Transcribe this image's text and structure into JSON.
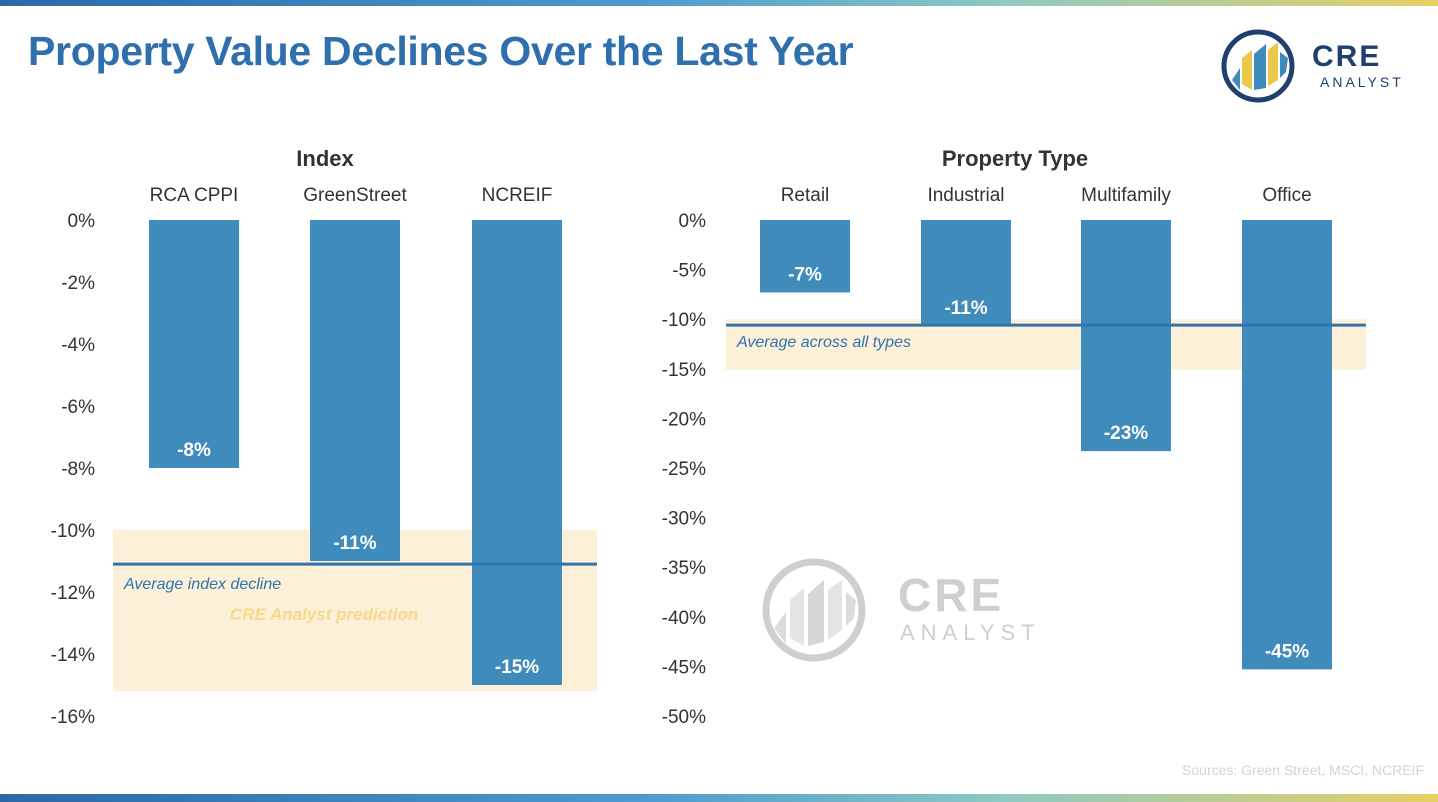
{
  "title": "Property Value Declines Over the Last Year",
  "logo": {
    "line1": "CRE",
    "line2": "ANALYST"
  },
  "watermark": {
    "line1": "CRE",
    "line2": "ANALYST"
  },
  "source": "Sources: Green Street, MSCI, NCREIF",
  "colors": {
    "bar": "#3e8bbc",
    "band": "#fdf0d9",
    "avg_line": "#2f74ad",
    "prediction_text": "#f5d88a",
    "title": "#2f6fad"
  },
  "chart_data": [
    {
      "type": "bar",
      "title": "Index",
      "categories": [
        "RCA CPPI",
        "GreenStreet",
        "NCREIF"
      ],
      "values": [
        -8,
        -11,
        -15
      ],
      "value_labels": [
        "-8%",
        "-11%",
        "-15%"
      ],
      "ylim": [
        -16,
        0
      ],
      "yticks": [
        0,
        -2,
        -4,
        -6,
        -8,
        -10,
        -12,
        -14,
        -16
      ],
      "ytick_labels": [
        "0%",
        "-2%",
        "-4%",
        "-6%",
        "-8%",
        "-10%",
        "-12%",
        "-14%",
        "-16%"
      ],
      "average": -11.1,
      "average_label": "Average index decline",
      "band": [
        -10,
        -15.2
      ],
      "band_label": "CRE Analyst prediction"
    },
    {
      "type": "bar",
      "title": "Property Type",
      "categories": [
        "Retail",
        "Industrial",
        "Multifamily",
        "Office"
      ],
      "values": [
        -7.3,
        -10.7,
        -23.3,
        -45.3
      ],
      "value_labels": [
        "-7%",
        "-11%",
        "-23%",
        "-45%"
      ],
      "ylim": [
        -50,
        0
      ],
      "yticks": [
        0,
        -5,
        -10,
        -15,
        -20,
        -25,
        -30,
        -35,
        -40,
        -45,
        -50
      ],
      "ytick_labels": [
        "0%",
        "-5%",
        "-10%",
        "-15%",
        "-20%",
        "-25%",
        "-30%",
        "-35%",
        "-40%",
        "-45%",
        "-50%"
      ],
      "average": -10.6,
      "average_label": "Average across all types",
      "band": [
        -10,
        -15.1
      ]
    }
  ]
}
